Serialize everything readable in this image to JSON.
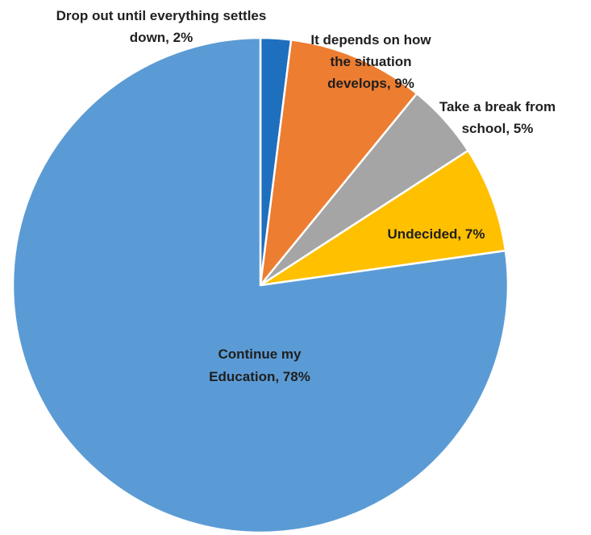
{
  "chart_data": {
    "type": "pie",
    "start_angle_deg": 0,
    "direction": "clockwise",
    "slices": [
      {
        "name": "Drop out until everything settles down",
        "value": 2,
        "color": "#1F6FBF",
        "label_lines": [
          "Drop out until everything settles",
          "down, 2%"
        ]
      },
      {
        "name": "It depends on how the situation develops",
        "value": 9,
        "color": "#ED7D31",
        "label_lines": [
          "It depends on how",
          "the situation",
          "develops, 9%"
        ]
      },
      {
        "name": "Take a break from school",
        "value": 5,
        "color": "#A5A5A5",
        "label_lines": [
          "Take a break from",
          "school, 5%"
        ]
      },
      {
        "name": "Undecided",
        "value": 7,
        "color": "#FFC000",
        "label_lines": [
          "Undecided, 7%"
        ]
      },
      {
        "name": "Continue my Education",
        "value": 78,
        "color": "#5B9BD5",
        "label_lines": [
          "Continue my",
          "Education, 78%"
        ]
      }
    ]
  }
}
